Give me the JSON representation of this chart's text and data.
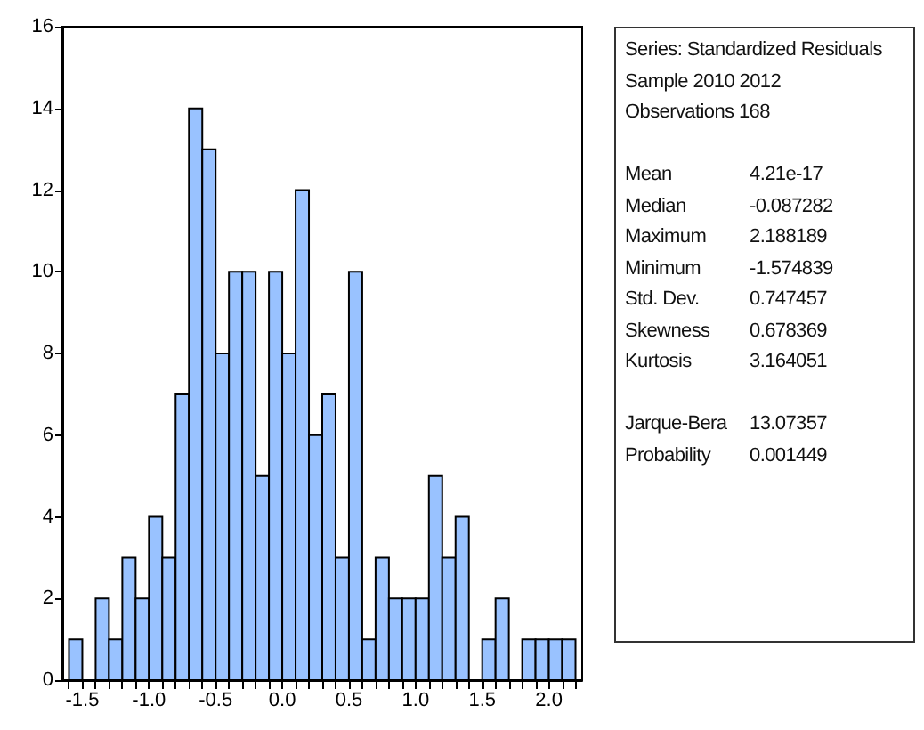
{
  "chart_data": [
    {
      "type": "histogram",
      "bins": [
        -1.6,
        -1.5,
        -1.4,
        -1.3,
        -1.2,
        -1.1,
        -1.0,
        -0.9,
        -0.8,
        -0.7,
        -0.6,
        -0.5,
        -0.4,
        -0.3,
        -0.2,
        -0.1,
        0.0,
        0.1,
        0.2,
        0.3,
        0.4,
        0.5,
        0.6,
        0.7,
        0.8,
        0.9,
        1.0,
        1.1,
        1.2,
        1.3,
        1.4,
        1.5,
        1.6,
        1.7,
        1.8,
        1.9,
        2.0,
        2.1,
        2.2
      ],
      "values": [
        1,
        0,
        2,
        1,
        3,
        2,
        4,
        3,
        7,
        14,
        13,
        8,
        10,
        10,
        5,
        10,
        8,
        12,
        6,
        7,
        3,
        10,
        1,
        3,
        2,
        2,
        2,
        5,
        3,
        4,
        0,
        1,
        2,
        0,
        1,
        1,
        1,
        1
      ],
      "color": "#99c2ff",
      "xlim": [
        -1.65,
        2.25
      ],
      "xticks": [
        {
          "value": -1.6,
          "label": null
        },
        {
          "value": -1.5,
          "label": "-1.5"
        },
        {
          "value": -1.4,
          "label": null
        },
        {
          "value": -1.3,
          "label": null
        },
        {
          "value": -1.2,
          "label": null
        },
        {
          "value": -1.1,
          "label": null
        },
        {
          "value": -1.0,
          "label": "-1.0"
        },
        {
          "value": -0.9,
          "label": null
        },
        {
          "value": -0.8,
          "label": null
        },
        {
          "value": -0.7,
          "label": null
        },
        {
          "value": -0.6,
          "label": null
        },
        {
          "value": -0.5,
          "label": "-0.5"
        },
        {
          "value": -0.4,
          "label": null
        },
        {
          "value": -0.3,
          "label": null
        },
        {
          "value": -0.2,
          "label": null
        },
        {
          "value": -0.1,
          "label": null
        },
        {
          "value": 0.0,
          "label": "0.0"
        },
        {
          "value": 0.1,
          "label": null
        },
        {
          "value": 0.2,
          "label": null
        },
        {
          "value": 0.3,
          "label": null
        },
        {
          "value": 0.4,
          "label": null
        },
        {
          "value": 0.5,
          "label": "0.5"
        },
        {
          "value": 0.6,
          "label": null
        },
        {
          "value": 0.7,
          "label": null
        },
        {
          "value": 0.8,
          "label": null
        },
        {
          "value": 0.9,
          "label": null
        },
        {
          "value": 1.0,
          "label": "1.0"
        },
        {
          "value": 1.1,
          "label": null
        },
        {
          "value": 1.2,
          "label": null
        },
        {
          "value": 1.3,
          "label": null
        },
        {
          "value": 1.4,
          "label": null
        },
        {
          "value": 1.5,
          "label": "1.5"
        },
        {
          "value": 1.6,
          "label": null
        },
        {
          "value": 1.7,
          "label": null
        },
        {
          "value": 1.8,
          "label": null
        },
        {
          "value": 1.9,
          "label": null
        },
        {
          "value": 2.0,
          "label": "2.0"
        },
        {
          "value": 2.1,
          "label": null
        },
        {
          "value": 2.2,
          "label": null
        }
      ],
      "ylim": [
        0,
        16
      ],
      "yticks": [
        0,
        2,
        4,
        6,
        8,
        10,
        12,
        14,
        16
      ],
      "grid": false
    },
    {
      "type": "other",
      "annotations": [
        "Series: Standardized Residuals",
        "Sample 2010 2012",
        "Observations 168"
      ],
      "categories": [
        "Mean",
        "Median",
        "Maximum",
        "Minimum",
        "Std. Dev.",
        "Skewness",
        "Kurtosis",
        null,
        "Jarque-Bera",
        "Probability"
      ],
      "value_labels": [
        "4.21e-17",
        "-0.087282",
        "2.188189",
        "-1.574839",
        "0.747457",
        "0.678369",
        "3.164051",
        null,
        "13.07357",
        "0.001449"
      ]
    }
  ]
}
